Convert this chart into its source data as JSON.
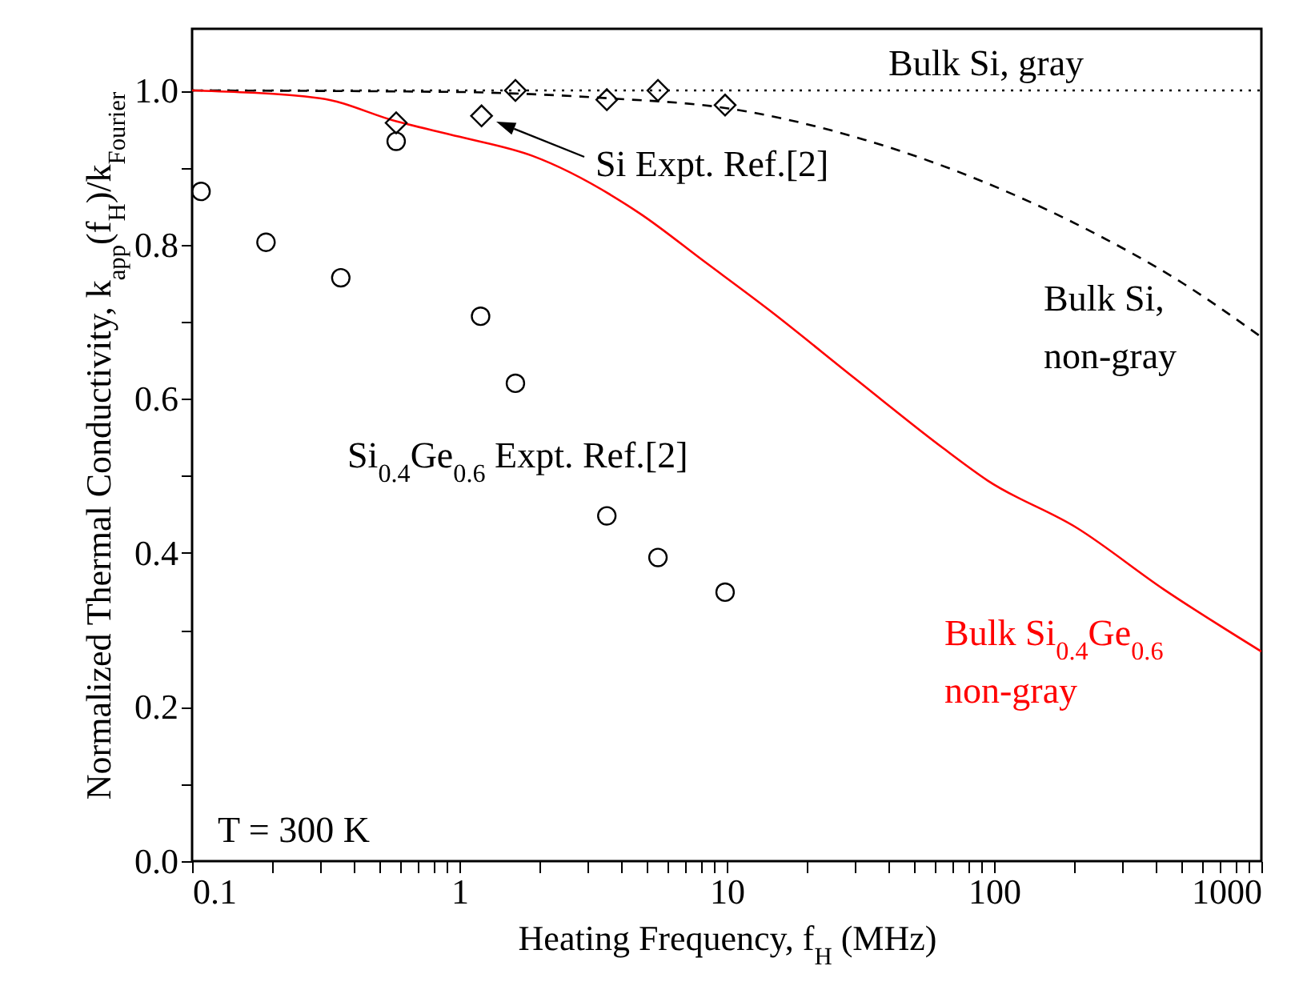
{
  "chart_data": {
    "type": "line",
    "xlabel": "Heating Frequency,  f$_{H}$ (MHz)",
    "ylabel": "Normalized Thermal Conductivity, k$_{app}$(f$_{H}$)/k$_{Fourier}$",
    "log": "x",
    "xlim": [
      0.1,
      1000
    ],
    "ylim": [
      0,
      1.08
    ],
    "xticks": [
      0.1,
      {
        "value": 0.2,
        "label": null
      },
      {
        "value": 0.3,
        "label": null
      },
      {
        "value": 0.4,
        "label": null
      },
      {
        "value": 0.5,
        "label": null
      },
      {
        "value": 0.6,
        "label": null
      },
      {
        "value": 0.7,
        "label": null
      },
      {
        "value": 0.8,
        "label": null
      },
      {
        "value": 0.9,
        "label": null
      },
      1,
      {
        "value": 2,
        "label": null
      },
      {
        "value": 3,
        "label": null
      },
      {
        "value": 4,
        "label": null
      },
      {
        "value": 5,
        "label": null
      },
      {
        "value": 6,
        "label": null
      },
      {
        "value": 7,
        "label": null
      },
      {
        "value": 8,
        "label": null
      },
      {
        "value": 9,
        "label": null
      },
      10,
      {
        "value": 20,
        "label": null
      },
      {
        "value": 30,
        "label": null
      },
      {
        "value": 40,
        "label": null
      },
      {
        "value": 50,
        "label": null
      },
      {
        "value": 60,
        "label": null
      },
      {
        "value": 70,
        "label": null
      },
      {
        "value": 80,
        "label": null
      },
      {
        "value": 90,
        "label": null
      },
      100,
      {
        "value": 200,
        "label": null
      },
      {
        "value": 300,
        "label": null
      },
      {
        "value": 400,
        "label": null
      },
      {
        "value": 500,
        "label": null
      },
      {
        "value": 600,
        "label": null
      },
      {
        "value": 700,
        "label": null
      },
      {
        "value": 800,
        "label": null
      },
      {
        "value": 900,
        "label": null
      },
      1000
    ],
    "yticks": [
      {
        "value": 0,
        "label": "0.0"
      },
      {
        "value": 0.1,
        "label": null
      },
      {
        "value": 0.2,
        "label": "0.2"
      },
      {
        "value": 0.3,
        "label": null
      },
      {
        "value": 0.4,
        "label": "0.4"
      },
      {
        "value": 0.5,
        "label": null
      },
      {
        "value": 0.6,
        "label": "0.6"
      },
      {
        "value": 0.7,
        "label": null
      },
      {
        "value": 0.8,
        "label": "0.8"
      },
      {
        "value": 0.9,
        "label": null
      },
      {
        "value": 1,
        "label": "1.0"
      }
    ],
    "series": [
      {
        "name": "Bulk Si, gray",
        "line_style": "dotted",
        "marker": "none",
        "color": "#000000",
        "x": [
          0.1,
          1000
        ],
        "values": [
          1.0,
          1.0
        ]
      },
      {
        "name": "Bulk Si,\nnon-gray",
        "line_style": "dashed",
        "marker": "none",
        "color": "#000000",
        "x": [
          0.1,
          1,
          1.62,
          3.56,
          10,
          32.8,
          82,
          205,
          513,
          1000
        ],
        "values": [
          1.0,
          0.998,
          0.996,
          0.99,
          0.977,
          0.936,
          0.888,
          0.826,
          0.749,
          0.68
        ]
      },
      {
        "name": "Bulk Si$_{0.4}$Ge$_{0.6}$\nnon-gray",
        "line_style": "solid",
        "marker": "none",
        "color": "#ff0000",
        "x": [
          0.1,
          0.3,
          0.58,
          1,
          1.88,
          4.75,
          8.25,
          14.3,
          30,
          65,
          94.5,
          205,
          430,
          1000
        ],
        "values": [
          1.0,
          0.99,
          0.96,
          0.94,
          0.915,
          0.84,
          0.778,
          0.716,
          0.627,
          0.535,
          0.494,
          0.432,
          0.353,
          0.272
        ]
      },
      {
        "type": "scatter",
        "marker": "diamond",
        "color": "#000000",
        "x": [
          0.58,
          1.21,
          1.62,
          3.56,
          5.53,
          9.86
        ],
        "values": [
          0.958,
          0.967,
          1.0,
          0.988,
          1.0,
          0.981
        ]
      },
      {
        "name": "Si$_{0.4}$Ge$_{0.6}$ Expt. Ref.[2]",
        "type": "scatter",
        "marker": "circle",
        "color": "#000000",
        "x": [
          0.108,
          0.189,
          0.36,
          0.58,
          1.2,
          1.62,
          3.56,
          5.53,
          9.86
        ],
        "values": [
          0.869,
          0.803,
          0.757,
          0.934,
          0.707,
          0.62,
          0.448,
          0.394,
          0.349
        ]
      }
    ],
    "annotations": [
      "Si Expt. Ref.[2]",
      "T = 300 K"
    ]
  }
}
